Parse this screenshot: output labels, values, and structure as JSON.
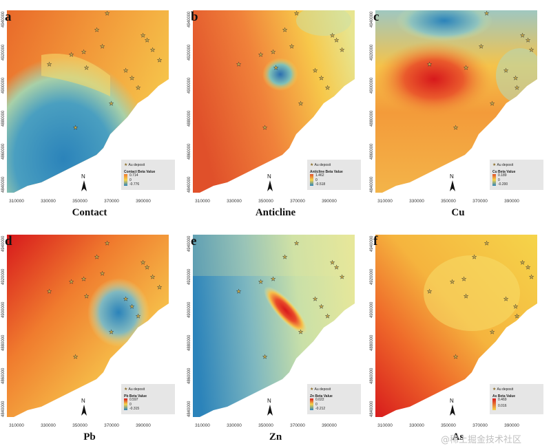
{
  "panels": [
    {
      "letter": "a",
      "caption": "Contact",
      "legend_title": "Contact Beta Value",
      "max": "0.714",
      "mid": "0",
      "min": "-0.776"
    },
    {
      "letter": "b",
      "caption": "Anticline",
      "legend_title": "Anticline Beta Value",
      "max": "1.462",
      "mid": "0",
      "min": "-0.518"
    },
    {
      "letter": "c",
      "caption": "Cu",
      "legend_title": "Cu Beta Value",
      "max": "0.189",
      "mid": "0",
      "min": "-0.200"
    },
    {
      "letter": "d",
      "caption": "Pb",
      "legend_title": "Pb Beta Value",
      "max": "0.597",
      "mid": "0",
      "min": "-0.315"
    },
    {
      "letter": "e",
      "caption": "Zn",
      "legend_title": "Zn Beta Value",
      "max": "0.022",
      "mid": "0",
      "min": "-0.212"
    },
    {
      "letter": "f",
      "caption": "As",
      "legend_title": "As Beta Value",
      "max": "0.469",
      "mid": "",
      "min": "0.016"
    }
  ],
  "legend_deposit_label": "Au deposit",
  "north_label": "N",
  "x_ticks": [
    "310000",
    "330000",
    "350000",
    "370000",
    "390000"
  ],
  "y_ticks": [
    "4940000",
    "4920000",
    "4900000",
    "4880000",
    "4860000",
    "4840000"
  ],
  "watermark": "@稀土掘金技术社区",
  "colors": {
    "red": "#d7191c",
    "orange": "#f07c2e",
    "yellow": "#f5d44a",
    "pale": "#e6e79a",
    "blue": "#2b83ba",
    "teal": "#6fb1b5"
  },
  "icons": {
    "deposit": "star-icon",
    "north": "north-arrow-icon"
  }
}
